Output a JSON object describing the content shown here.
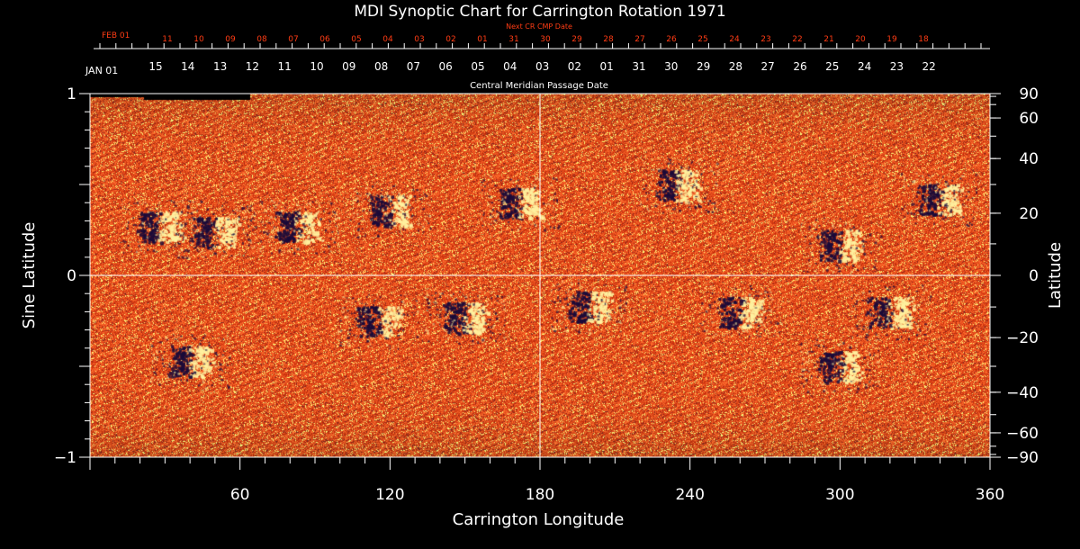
{
  "chart_data": {
    "type": "heatmap",
    "title": "MDI Synoptic Chart for Carrington Rotation 1971",
    "xlabel": "Carrington Longitude",
    "ylabel_left": "Sine Latitude",
    "ylabel_right": "Latitude",
    "xlim": [
      0,
      360
    ],
    "ylim": [
      -1,
      1
    ],
    "x_ticks": [
      60,
      120,
      180,
      240,
      300,
      360
    ],
    "y_ticks_left": [
      {
        "value": 1,
        "label": "1"
      },
      {
        "value": 0,
        "label": "0"
      },
      {
        "value": -1,
        "label": "−1"
      }
    ],
    "y_ticks_right": [
      90,
      60,
      40,
      20,
      0,
      -20,
      -40,
      -60,
      -90
    ],
    "right_axis_scale": "latitude in degrees on a sine-latitude axis",
    "top_axis": {
      "title": "Central Meridian Passage Date",
      "start_label": "JAN 01",
      "labels": [
        "15",
        "14",
        "13",
        "12",
        "11",
        "10",
        "09",
        "08",
        "07",
        "06",
        "05",
        "04",
        "03",
        "02",
        "01",
        "31",
        "30",
        "29",
        "28",
        "27",
        "26",
        "25",
        "24",
        "23",
        "22"
      ]
    },
    "next_cr_axis": {
      "title": "Next CR CMP Date",
      "start_label": "FEB 01",
      "labels": [
        "11",
        "10",
        "09",
        "08",
        "07",
        "06",
        "05",
        "04",
        "03",
        "02",
        "01",
        "31",
        "30",
        "29",
        "28",
        "27",
        "26",
        "25",
        "24",
        "23",
        "22",
        "21",
        "20",
        "19",
        "18"
      ]
    },
    "colors": {
      "background": "#000000",
      "field_base": "#e8501e",
      "positive_polarity": "#fff2a0",
      "negative_polarity": "#1a0a3a",
      "next_cr_text": "#ff3c14",
      "grid": "#ffffff"
    },
    "active_regions": [
      {
        "lon": 28,
        "sinlat": 0.27,
        "polarity": "bipolar"
      },
      {
        "lon": 50,
        "sinlat": 0.24,
        "polarity": "bipolar"
      },
      {
        "lon": 83,
        "sinlat": 0.27,
        "polarity": "bipolar"
      },
      {
        "lon": 120,
        "sinlat": 0.36,
        "polarity": "bipolar"
      },
      {
        "lon": 172,
        "sinlat": 0.4,
        "polarity": "bipolar"
      },
      {
        "lon": 235,
        "sinlat": 0.5,
        "polarity": "bipolar"
      },
      {
        "lon": 300,
        "sinlat": 0.17,
        "polarity": "bipolar"
      },
      {
        "lon": 340,
        "sinlat": 0.42,
        "polarity": "bipolar"
      },
      {
        "lon": 200,
        "sinlat": -0.17,
        "polarity": "bipolar"
      },
      {
        "lon": 260,
        "sinlat": -0.2,
        "polarity": "bipolar"
      },
      {
        "lon": 320,
        "sinlat": -0.2,
        "polarity": "bipolar"
      },
      {
        "lon": 115,
        "sinlat": -0.25,
        "polarity": "bipolar"
      },
      {
        "lon": 40,
        "sinlat": -0.47,
        "polarity": "bipolar"
      },
      {
        "lon": 150,
        "sinlat": -0.23,
        "polarity": "bipolar"
      },
      {
        "lon": 300,
        "sinlat": -0.5,
        "polarity": "bipolar"
      }
    ]
  }
}
